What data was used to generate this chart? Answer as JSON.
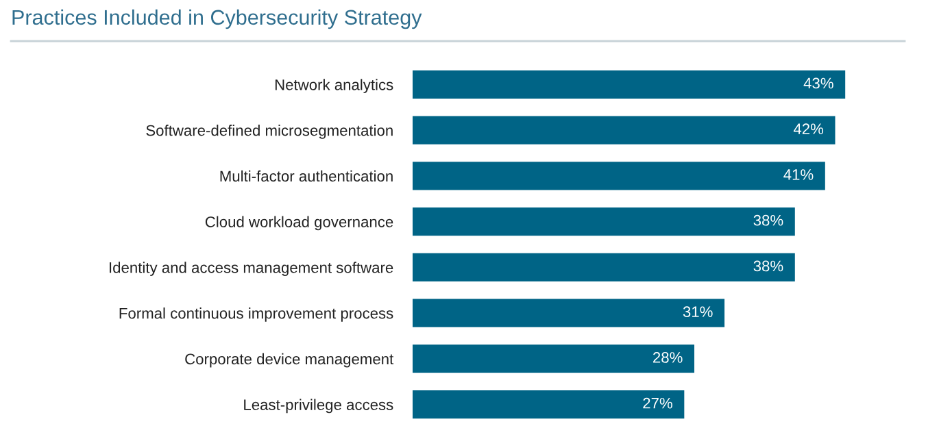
{
  "chart_data": {
    "type": "bar",
    "orientation": "horizontal",
    "title": "Practices Included in Cybersecurity Strategy",
    "categories": [
      "Network analytics",
      "Software-defined microsegmentation",
      "Multi-factor authentication",
      "Cloud workload governance",
      "Identity and access management software",
      "Formal continuous improvement process",
      "Corporate device management",
      "Least-privilege access"
    ],
    "values": [
      43,
      42,
      41,
      38,
      38,
      31,
      28,
      27
    ],
    "value_labels": [
      "43%",
      "42%",
      "41%",
      "38%",
      "38%",
      "31%",
      "28%",
      "27%"
    ],
    "color": "#006486",
    "grid": false,
    "legend": false
  }
}
